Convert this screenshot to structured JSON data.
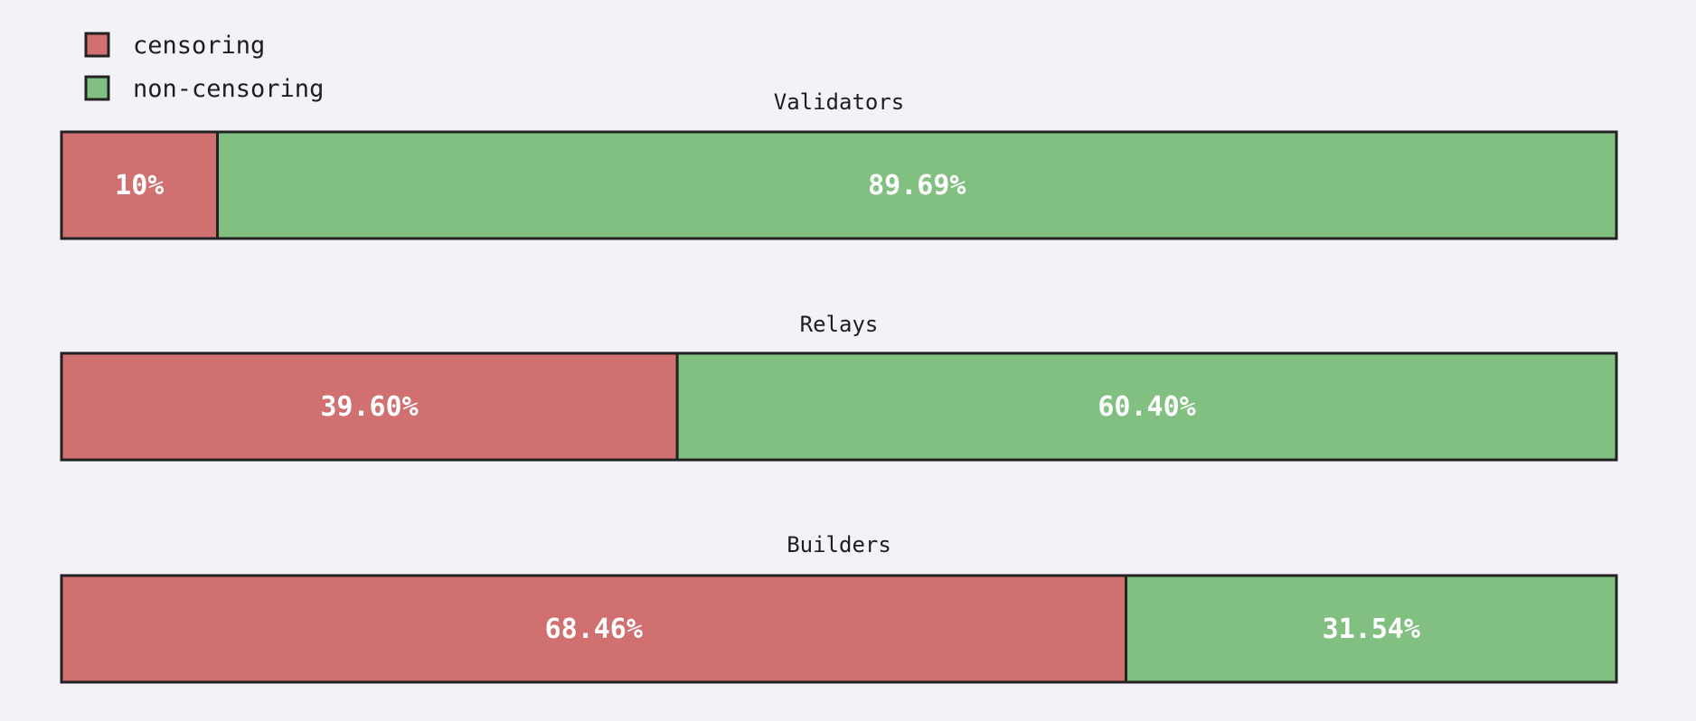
{
  "chart_data": {
    "type": "bar",
    "orientation": "horizontal-stacked",
    "legend_position": "top-left",
    "legend": [
      {
        "name": "censoring",
        "color": "#d07070"
      },
      {
        "name": "non-censoring",
        "color": "#82c082"
      }
    ],
    "bars": [
      {
        "title": "Validators",
        "segments": [
          {
            "series": "censoring",
            "value": 10,
            "label": "10%"
          },
          {
            "series": "non-censoring",
            "value": 89.69,
            "label": "89.69%"
          }
        ]
      },
      {
        "title": "Relays",
        "segments": [
          {
            "series": "censoring",
            "value": 39.6,
            "label": "39.60%"
          },
          {
            "series": "non-censoring",
            "value": 60.4,
            "label": "60.40%"
          }
        ]
      },
      {
        "title": "Builders",
        "segments": [
          {
            "series": "censoring",
            "value": 68.46,
            "label": "68.46%"
          },
          {
            "series": "non-censoring",
            "value": 31.54,
            "label": "31.54%"
          }
        ]
      }
    ],
    "colors": {
      "border": "#222222",
      "background": "#f2f2f7"
    }
  }
}
